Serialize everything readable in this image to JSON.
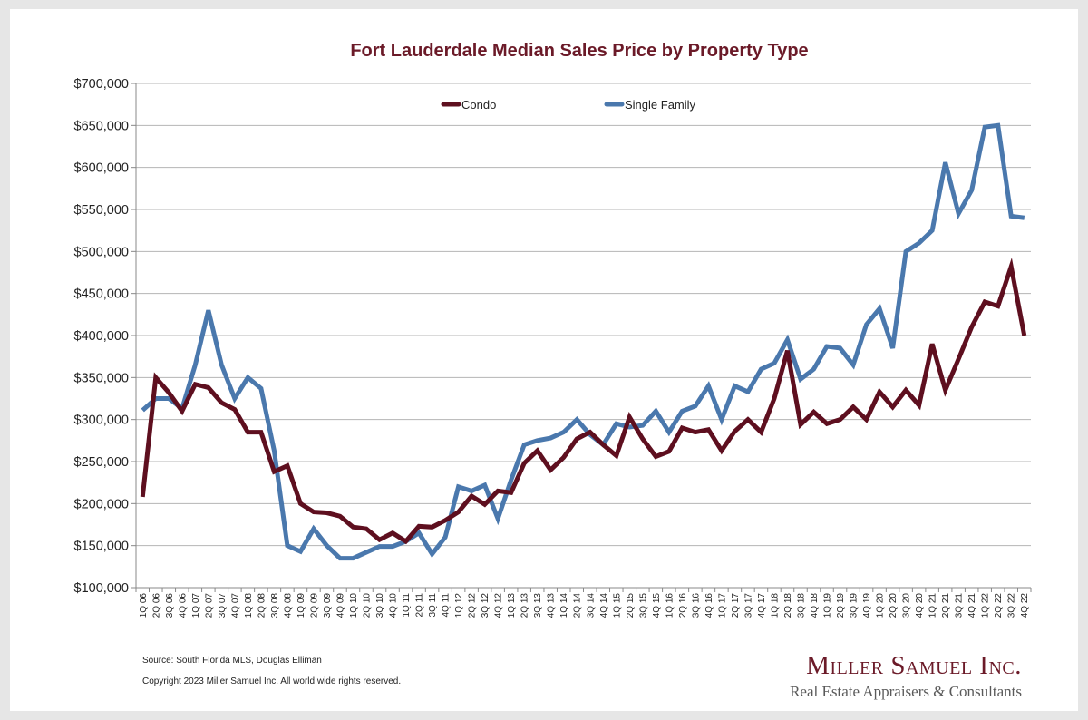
{
  "chart_data": {
    "type": "line",
    "title": "Fort Lauderdale Median Sales Price by Property Type",
    "xlabel": "",
    "ylabel": "",
    "ylim": [
      100000,
      700000
    ],
    "ytick_values": [
      100000,
      150000,
      200000,
      250000,
      300000,
      350000,
      400000,
      450000,
      500000,
      550000,
      600000,
      650000,
      700000
    ],
    "ytick_labels": [
      "$100,000",
      "$150,000",
      "$200,000",
      "$250,000",
      "$300,000",
      "$350,000",
      "$400,000",
      "$450,000",
      "$500,000",
      "$550,000",
      "$600,000",
      "$650,000",
      "$700,000"
    ],
    "grid": true,
    "legend_position": "top-center",
    "categories": [
      "1Q 06",
      "2Q 06",
      "3Q 06",
      "4Q 06",
      "1Q 07",
      "2Q 07",
      "3Q 07",
      "4Q 07",
      "1Q 08",
      "2Q 08",
      "3Q 08",
      "4Q 08",
      "1Q 09",
      "2Q 09",
      "3Q 09",
      "4Q 09",
      "1Q 10",
      "2Q 10",
      "3Q 10",
      "4Q 10",
      "1Q 11",
      "2Q 11",
      "3Q 11",
      "4Q 11",
      "1Q 12",
      "2Q 12",
      "3Q 12",
      "4Q 12",
      "1Q 13",
      "2Q 13",
      "3Q 13",
      "4Q 13",
      "1Q 14",
      "2Q 14",
      "3Q 14",
      "4Q 14",
      "1Q 15",
      "2Q 15",
      "3Q 15",
      "4Q 15",
      "1Q 16",
      "2Q 16",
      "3Q 16",
      "4Q 16",
      "1Q 17",
      "2Q 17",
      "3Q 17",
      "4Q 17",
      "1Q 18",
      "2Q 18",
      "3Q 18",
      "4Q 18",
      "1Q 19",
      "2Q 19",
      "3Q 19",
      "4Q 19",
      "1Q 20",
      "2Q 20",
      "3Q 20",
      "4Q 20",
      "1Q 21",
      "2Q 21",
      "3Q 21",
      "4Q 21",
      "1Q 22",
      "2Q 22",
      "3Q 22",
      "4Q 22"
    ],
    "series": [
      {
        "name": "Condo",
        "color": "#5e0f1f",
        "values": [
          208000,
          350000,
          332000,
          310000,
          342000,
          338000,
          320000,
          312000,
          285000,
          285000,
          238000,
          245000,
          200000,
          190000,
          189000,
          185000,
          172000,
          170000,
          157000,
          165000,
          155000,
          173000,
          172000,
          180000,
          190000,
          209000,
          199000,
          215000,
          213000,
          248000,
          263000,
          240000,
          255000,
          277000,
          285000,
          270000,
          257000,
          303000,
          277000,
          256000,
          262000,
          290000,
          285000,
          288000,
          263000,
          286000,
          300000,
          285000,
          325000,
          382000,
          294000,
          309000,
          295000,
          300000,
          315000,
          300000,
          333000,
          315000,
          335000,
          317000,
          390000,
          335000,
          372000,
          410000,
          440000,
          435000,
          482000,
          400000
        ]
      },
      {
        "name": "Single Family",
        "color": "#4a78ad",
        "values": [
          311000,
          325000,
          325000,
          313000,
          365000,
          430000,
          365000,
          325000,
          350000,
          337000,
          263000,
          150000,
          143000,
          170000,
          150000,
          135000,
          135000,
          142000,
          149000,
          149000,
          155000,
          165000,
          140000,
          160000,
          220000,
          215000,
          222000,
          182000,
          228000,
          270000,
          275000,
          278000,
          285000,
          300000,
          282000,
          270000,
          295000,
          291000,
          293000,
          310000,
          285000,
          310000,
          316000,
          340000,
          300000,
          340000,
          333000,
          360000,
          367000,
          395000,
          348000,
          360000,
          387000,
          385000,
          365000,
          413000,
          432000,
          385000,
          500000,
          510000,
          525000,
          606000,
          545000,
          573000,
          648000,
          650000,
          542000,
          540000
        ]
      }
    ]
  },
  "footer": {
    "source": "Source: South Florida MLS, Douglas Elliman",
    "copyright": "Copyright 2023 Miller Samuel Inc.  All world wide rights reserved."
  },
  "logo": {
    "name": "Miller Samuel Inc.",
    "tagline": "Real Estate Appraisers & Consultants"
  }
}
